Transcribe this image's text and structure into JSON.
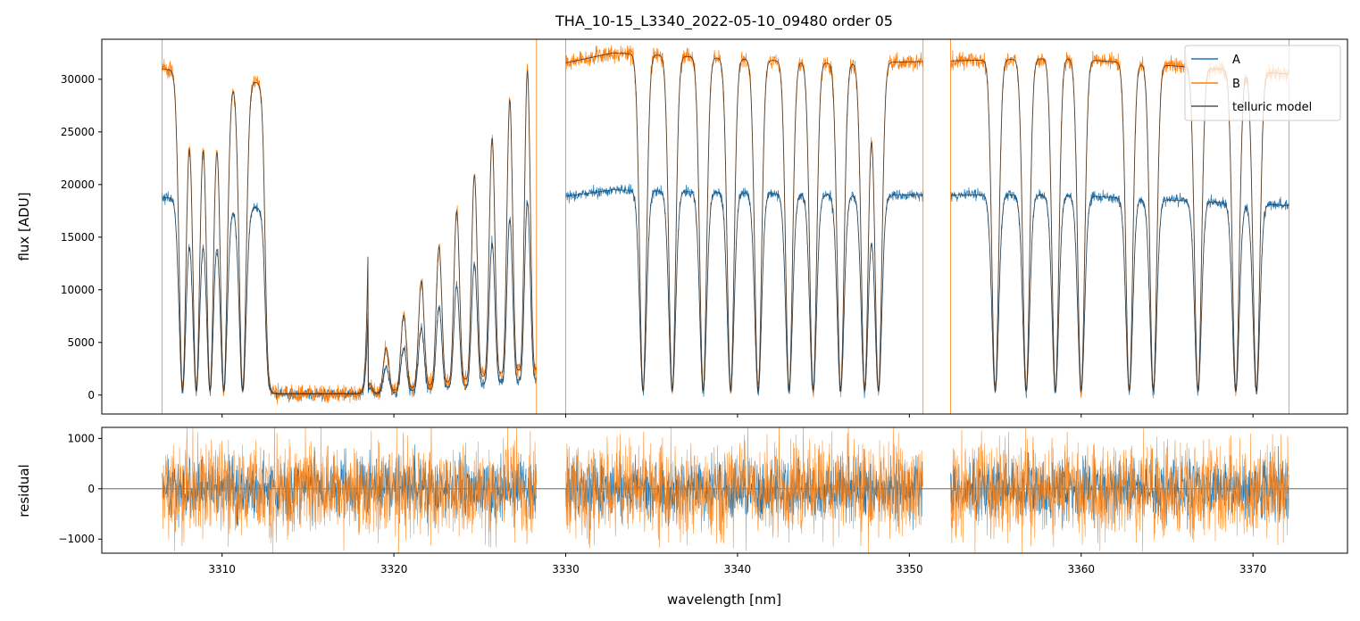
{
  "chart_data": [
    {
      "panel": "top",
      "type": "line",
      "title": "THA_10-15_L3340_2022-05-10_09480  order 05",
      "xlabel": "",
      "ylabel": "flux [ADU]",
      "xlim": [
        3303.0,
        3375.5
      ],
      "ylim": [
        -1800,
        33800
      ],
      "xticks": [
        3310,
        3320,
        3330,
        3340,
        3350,
        3360,
        3370
      ],
      "yticks": [
        0,
        5000,
        10000,
        15000,
        20000,
        25000,
        30000
      ],
      "ytick_labels": [
        "0",
        "5000",
        "10000",
        "15000",
        "20000",
        "25000",
        "30000"
      ],
      "segments": [
        [
          3306.5,
          3328.3
        ],
        [
          3330.0,
          3350.8
        ],
        [
          3352.4,
          3372.1
        ]
      ],
      "series": [
        {
          "name": "A",
          "color": "#1f77b4",
          "continuum": [
            18800,
            16500,
            19500,
            19000,
            19000,
            18000
          ],
          "noise": 450
        },
        {
          "name": "B",
          "color": "#ff7f0e",
          "continuum": [
            31000,
            28000,
            32500,
            31500,
            32000,
            30500
          ],
          "noise": 700
        },
        {
          "name": "telluric model",
          "color": "#555555",
          "reference": "B"
        }
      ],
      "absorption_lines_nm": [
        3307.7,
        3308.5,
        3309.3,
        3310.1,
        3311.2,
        3334.5,
        3336.2,
        3338.0,
        3339.6,
        3341.2,
        3343.0,
        3344.4,
        3346.0,
        3347.4,
        3348.2,
        3355.0,
        3356.8,
        3358.5,
        3360.0,
        3362.8,
        3364.2,
        3366.8,
        3369.0,
        3370.2
      ],
      "saturated_band_nm": [
        3312.5,
        3318.5
      ],
      "legend": {
        "position": "top-right",
        "entries": [
          "A",
          "B",
          "telluric model"
        ]
      }
    },
    {
      "panel": "bottom",
      "type": "line",
      "xlabel": "wavelength [nm]",
      "ylabel": "residual",
      "xlim": [
        3303.0,
        3375.5
      ],
      "ylim": [
        -1280,
        1220
      ],
      "xticks": [
        3310,
        3320,
        3330,
        3340,
        3350,
        3360,
        3370
      ],
      "xtick_labels": [
        "3310",
        "3320",
        "3330",
        "3340",
        "3350",
        "3360",
        "3370"
      ],
      "yticks": [
        -1000,
        0,
        1000
      ],
      "ytick_labels": [
        "−1000",
        "0",
        "1000"
      ],
      "zero_line": true,
      "series": [
        {
          "name": "A",
          "color": "#1f77b4",
          "noise": 300
        },
        {
          "name": "B",
          "color": "#ff7f0e",
          "noise": 500
        }
      ]
    }
  ]
}
